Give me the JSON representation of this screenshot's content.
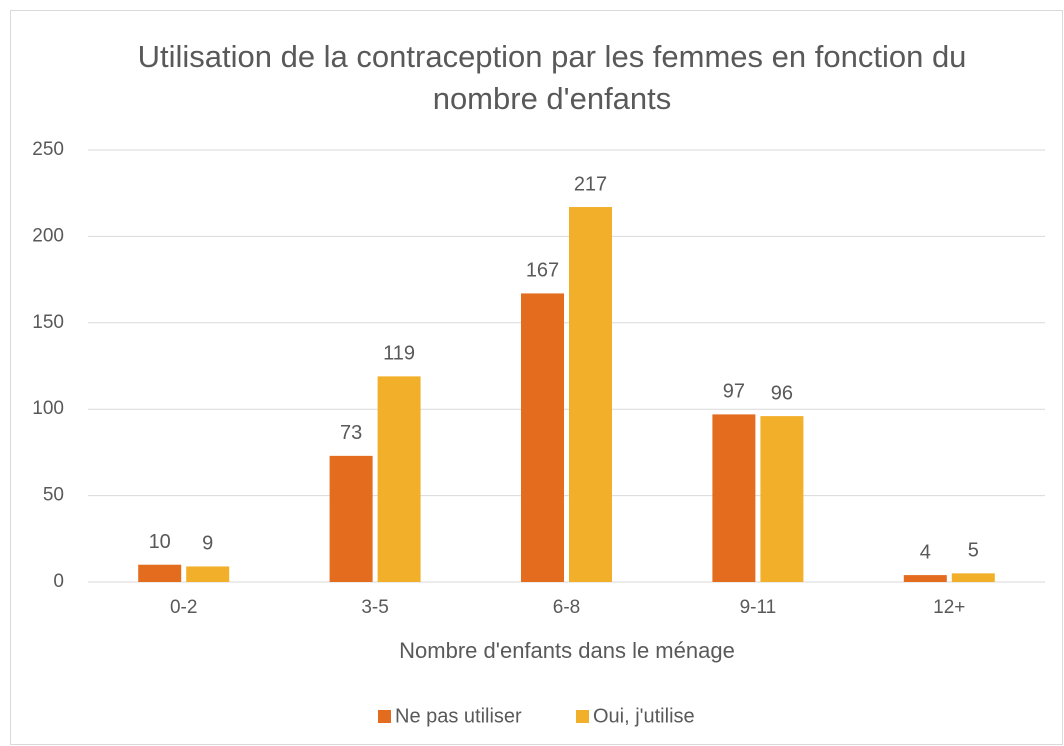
{
  "chart_data": {
    "type": "bar",
    "title": "Utilisation de la contraception par les femmes en fonction du nombre d'enfants",
    "x_label": "Nombre d'enfants dans le ménage",
    "categories": [
      "0-2",
      "3-5",
      "6-8",
      "9-11",
      "12+"
    ],
    "series": [
      {
        "name": "Ne pas utiliser",
        "color": "#e36c1f",
        "values": [
          10,
          73,
          167,
          97,
          4
        ]
      },
      {
        "name": "Oui, j'utilise",
        "color": "#f2b02a",
        "values": [
          9,
          119,
          217,
          96,
          5
        ]
      }
    ],
    "ylim": [
      0,
      250
    ],
    "yticks": [
      0,
      50,
      100,
      150,
      200,
      250
    ],
    "grid": true,
    "legend": "bottom"
  }
}
